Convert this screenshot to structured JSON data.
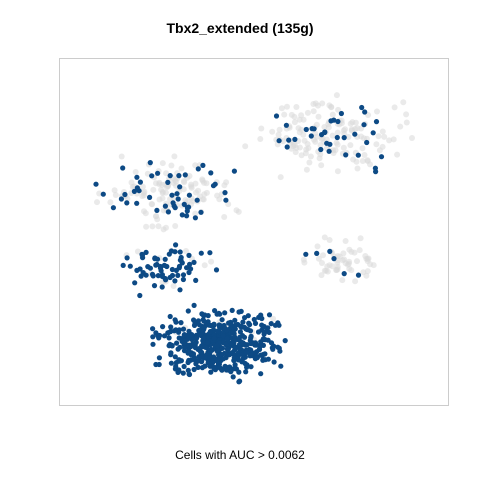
{
  "chart_data": {
    "type": "scatter",
    "title": "Tbx2_extended (135g)",
    "caption": "Cells with AUC > 0.0062",
    "xlabel": "",
    "ylabel": "",
    "axes_shown": false,
    "grid": false,
    "xlim": [
      0,
      100
    ],
    "ylim": [
      0,
      100
    ],
    "colors": {
      "above_threshold": "#0d4a85",
      "below_threshold": "#d9d9d9",
      "frame": "#cccccc"
    },
    "regions": [
      {
        "name": "top-right-cluster",
        "status": "mostly-below",
        "n": 180,
        "x_range": [
          44,
          96
        ],
        "y_range": [
          64,
          92
        ],
        "highlight_fraction": 0.16
      },
      {
        "name": "left-upper-cluster",
        "status": "mixed",
        "n": 170,
        "x_range": [
          5,
          50
        ],
        "y_range": [
          48,
          75
        ],
        "highlight_fraction": 0.3
      },
      {
        "name": "right-middle-arm",
        "status": "mostly-below",
        "n": 60,
        "x_range": [
          60,
          84
        ],
        "y_range": [
          33,
          50
        ],
        "highlight_fraction": 0.1
      },
      {
        "name": "middle-left-band",
        "status": "mostly-above",
        "n": 80,
        "x_range": [
          12,
          42
        ],
        "y_range": [
          30,
          48
        ],
        "highlight_fraction": 0.8
      },
      {
        "name": "bottom-blob",
        "status": "above",
        "n": 520,
        "x_range": [
          20,
          62
        ],
        "y_range": [
          4,
          30
        ],
        "highlight_fraction": 0.93
      }
    ]
  }
}
